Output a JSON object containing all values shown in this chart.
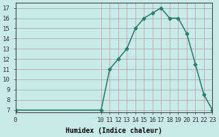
{
  "xlabel": "Humidex (Indice chaleur)",
  "x_values": [
    0,
    10,
    11,
    12,
    13,
    14,
    15,
    16,
    17,
    18,
    19,
    20,
    21,
    22,
    23
  ],
  "y_values": [
    7,
    7,
    11,
    12,
    13,
    15,
    16,
    16.5,
    17,
    16,
    16,
    14.5,
    11.5,
    8.5,
    7
  ],
  "ylim": [
    6.8,
    17.5
  ],
  "xlim": [
    0,
    23
  ],
  "yticks": [
    7,
    8,
    9,
    10,
    11,
    12,
    13,
    14,
    15,
    16,
    17
  ],
  "xticks": [
    0,
    10,
    11,
    12,
    13,
    14,
    15,
    16,
    17,
    18,
    19,
    20,
    21,
    22,
    23
  ],
  "line_color": "#2e7d6e",
  "marker": "D",
  "marker_size": 2.5,
  "bg_color": "#c8eae8",
  "grid_color_h": "#a0a0a0",
  "grid_color_v": "#c89090",
  "axis_label_fontsize": 7,
  "tick_fontsize": 6.5,
  "line_width": 1.2
}
